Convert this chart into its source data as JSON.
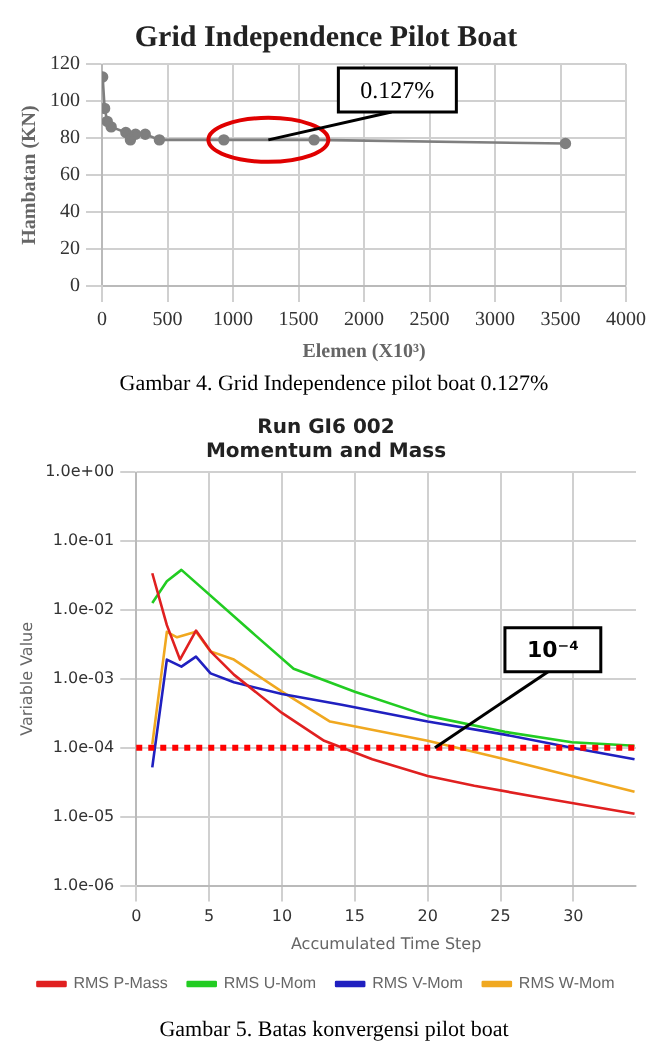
{
  "chart_data": [
    {
      "type": "line",
      "title": "Grid Independence Pilot Boat",
      "xlabel": "Elemen (X10³)",
      "ylabel": "Hambatan (KN)",
      "x": [
        5,
        20,
        40,
        70,
        182,
        217,
        256,
        330,
        438,
        930,
        1619,
        3538
      ],
      "series": [
        {
          "color": "#7f7f7f",
          "values": [
            113,
            96,
            89,
            86,
            83,
            79,
            82,
            82,
            79,
            79,
            79,
            77
          ]
        }
      ],
      "xlim": [
        0,
        4000
      ],
      "xticks": [
        0,
        500,
        1000,
        1500,
        2000,
        2500,
        3000,
        3500,
        4000
      ],
      "ylim": [
        0,
        120
      ],
      "yticks": [
        0,
        20,
        40,
        60,
        80,
        100,
        120
      ],
      "grid": true,
      "legend": false,
      "marker": "circle",
      "line_style": "solid",
      "annotations": [
        {
          "text": "0.127%",
          "x": 1270,
          "y": 79
        },
        "Gambar 4.  Grid Independence  pilot boat 0.127%"
      ]
    },
    {
      "type": "line",
      "title": "Run GI6 002",
      "subtitle": "Momentum and Mass",
      "xlabel": "Accumulated Time Step",
      "ylabel": "Variable Value",
      "log": "y",
      "x": [
        1.1,
        2.1,
        3,
        4.1,
        5.1,
        6.7,
        10,
        12.9,
        16.2,
        20,
        23.2,
        27.4,
        34.2
      ],
      "series": [
        {
          "name": "RMS P-Mass",
          "color": "#e02020",
          "values": [
            0.034,
            0.006,
            0.0019,
            0.005,
            0.0025,
            0.00115,
            0.00032,
            0.000126,
            6.8e-05,
            3.9e-05,
            2.8e-05,
            1.95e-05,
            1.1e-05
          ]
        },
        {
          "name": "RMS U-Mom",
          "color": "#22cc22",
          "x": [
            1.1,
            2.1,
            3.1,
            7.9,
            10.8,
            15,
            20,
            25.3,
            29.9,
            34.2
          ],
          "values": [
            0.0126,
            0.026,
            0.038,
            0.0048,
            0.0014,
            0.00065,
            0.00029,
            0.00017,
            0.00012,
            0.000107
          ]
        },
        {
          "name": "RMS V-Mom",
          "color": "#2020c0",
          "x": [
            1.1,
            2.1,
            3.1,
            4.1,
            5.1,
            6.7,
            10,
            14.1,
            20,
            25.3,
            29.9,
            34.2
          ],
          "values": [
            5.2e-05,
            0.0019,
            0.0015,
            0.0021,
            0.0012,
            0.00089,
            0.0006,
            0.00042,
            0.00024,
            0.000155,
            0.0001,
            6.8e-05
          ]
        },
        {
          "name": "RMS W-Mom",
          "color": "#f0a820",
          "x": [
            1.1,
            2.1,
            2.8,
            4.1,
            5.1,
            6.7,
            10,
            13.3,
            20,
            25.3,
            34.2
          ],
          "values": [
            0.000112,
            0.0048,
            0.004,
            0.0048,
            0.0025,
            0.0019,
            0.00065,
            0.00024,
            0.000126,
            6.8e-05,
            2.3e-05
          ]
        }
      ],
      "xlim": [
        0,
        34.3
      ],
      "xticks": [
        0,
        5,
        10,
        15,
        20,
        25,
        30
      ],
      "ylim": [
        1e-06,
        1
      ],
      "yticks": [
        {
          "value": 1,
          "label": "1.0e+00"
        },
        {
          "value": 0.1,
          "label": "1.0e-01"
        },
        {
          "value": 0.01,
          "label": "1.0e-02"
        },
        {
          "value": 0.001,
          "label": "1.0e-03"
        },
        {
          "value": 0.0001,
          "label": "1.0e-04"
        },
        {
          "value": 1e-05,
          "label": "1.0e-05"
        },
        {
          "value": 1e-06,
          "label": "1.0e-06"
        }
      ],
      "grid": true,
      "legend": "bottom",
      "marker": "none",
      "line_style": "solid",
      "ref_lines": [
        {
          "axis": "y",
          "value": 0.0001,
          "color": "#ff0000",
          "line_style": "dotted"
        }
      ],
      "annotations": [
        {
          "text": "10⁻⁴",
          "x": 20.5,
          "y": 0.0001
        },
        "Gambar 5. Batas konvergensi  pilot boat"
      ]
    }
  ]
}
